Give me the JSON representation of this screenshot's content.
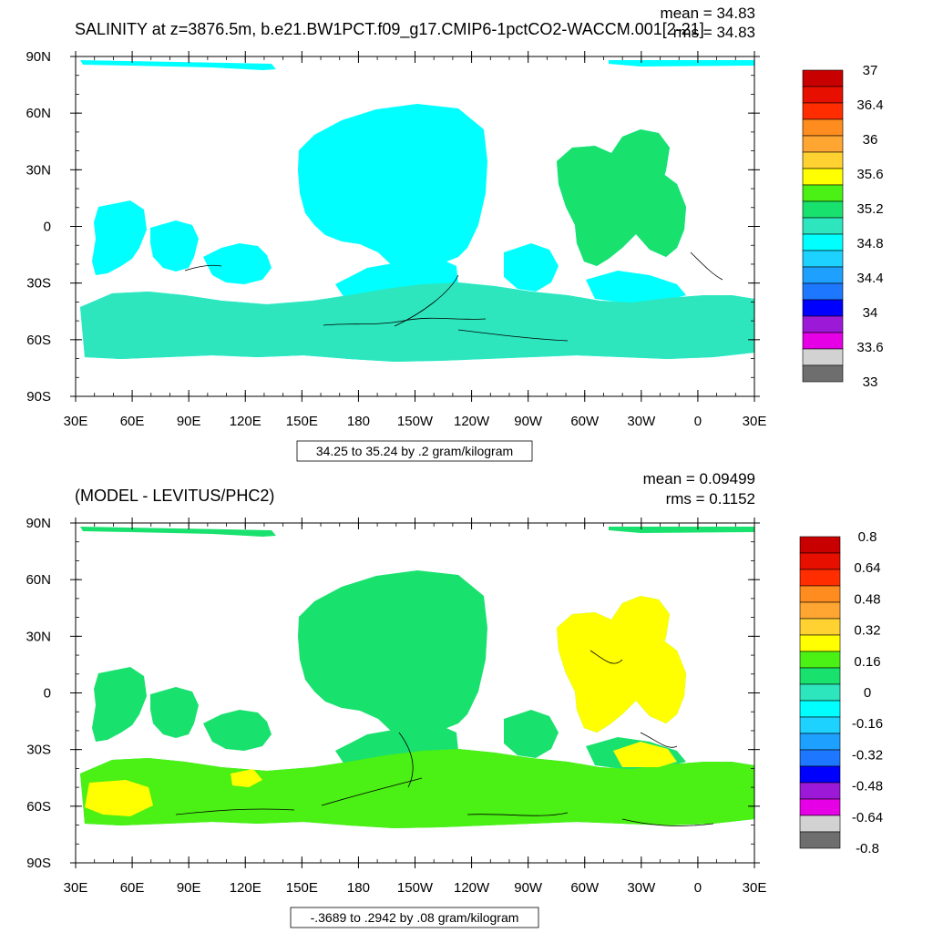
{
  "panels": [
    {
      "title": "SALINITY at z=3876.5m, b.e21.BW1PCT.f09_g17.CMIP6-1pctCO2-WACCM.001[2-21]",
      "mean_text": "mean = 34.83",
      "rms_text": "rms = 34.83",
      "lat_labels": [
        "90N",
        "60N",
        "30N",
        "0",
        "30S",
        "60S",
        "90S"
      ],
      "lon_labels": [
        "30E",
        "60E",
        "90E",
        "120E",
        "150E",
        "180",
        "150W",
        "120W",
        "90W",
        "60W",
        "30W",
        "0",
        "30E"
      ],
      "contour_info": "34.25 to 35.24 by .2 gram/kilogram",
      "colorbar_labels": [
        "37",
        "36.4",
        "36",
        "35.6",
        "35.2",
        "34.8",
        "34.4",
        "34",
        "33.6",
        "33"
      ]
    },
    {
      "title": "(MODEL - LEVITUS/PHC2)",
      "mean_text": "mean = 0.09499",
      "rms_text": "rms = 0.1152",
      "lat_labels": [
        "90N",
        "60N",
        "30N",
        "0",
        "30S",
        "60S",
        "90S"
      ],
      "lon_labels": [
        "30E",
        "60E",
        "90E",
        "120E",
        "150E",
        "180",
        "150W",
        "120W",
        "90W",
        "60W",
        "30W",
        "0",
        "30E"
      ],
      "contour_info": "-.3689 to .2942 by .08 gram/kilogram",
      "colorbar_labels": [
        "0.8",
        "0.64",
        "0.48",
        "0.32",
        "0.16",
        "0",
        "-0.16",
        "-0.32",
        "-0.48",
        "-0.64",
        "-0.8"
      ]
    }
  ],
  "colors": {
    "palette": [
      "#6e6e6e",
      "#d2d2d2",
      "#e600e6",
      "#9b19d7",
      "#0000ff",
      "#1e78ff",
      "#1ea0ff",
      "#1ed2ff",
      "#00ffff",
      "#2de6be",
      "#19e16e",
      "#4bf014",
      "#ffff00",
      "#ffd232",
      "#ffa532",
      "#ff8c1e",
      "#ff2d00",
      "#e60f00",
      "#c80000"
    ],
    "salinity_main": "#00ffff",
    "salinity_south": "#2de6be",
    "salinity_indian": "#19e16e",
    "diff_main": "#19e16e",
    "diff_south": "#4bf014",
    "diff_atlantic": "#ffff00"
  }
}
